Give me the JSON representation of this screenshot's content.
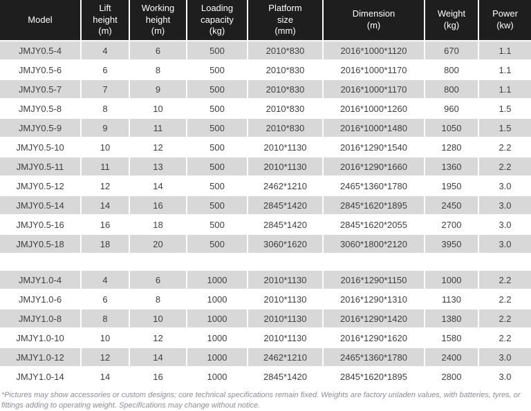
{
  "colors": {
    "header_bg": "#1e1e1e",
    "row_alt": "#d8d8d8",
    "cell_text": "#3e3e3e",
    "footnote_text": "#8d8d95"
  },
  "table": {
    "columns": [
      {
        "label": "Model"
      },
      {
        "label": "Lift\nheight\n(m)"
      },
      {
        "label": "Working\nheight\n(m)"
      },
      {
        "label": "Loading\ncapacity\n(kg)"
      },
      {
        "label": "Platform\nsize\n(mm)"
      },
      {
        "label": "Dimension\n(m)"
      },
      {
        "label": "Weight\n(kg)"
      },
      {
        "label": "Power\n(kw)"
      }
    ],
    "sections": [
      {
        "rows": [
          [
            "JMJY0.5-4",
            "4",
            "6",
            "500",
            "2010*830",
            "2016*1000*1120",
            "670",
            "1.1"
          ],
          [
            "JMJY0.5-6",
            "6",
            "8",
            "500",
            "2010*830",
            "2016*1000*1170",
            "800",
            "1.1"
          ],
          [
            "JMJY0.5-7",
            "7",
            "9",
            "500",
            "2010*830",
            "2016*1000*1170",
            "800",
            "1.1"
          ],
          [
            "JMJY0.5-8",
            "8",
            "10",
            "500",
            "2010*830",
            "2016*1000*1260",
            "960",
            "1.5"
          ],
          [
            "JMJY0.5-9",
            "9",
            "11",
            "500",
            "2010*830",
            "2016*1000*1480",
            "1050",
            "1.5"
          ],
          [
            "JMJY0.5-10",
            "10",
            "12",
            "500",
            "2010*1130",
            "2016*1290*1540",
            "1280",
            "2.2"
          ],
          [
            "JMJY0.5-11",
            "11",
            "13",
            "500",
            "2010*1130",
            "2016*1290*1660",
            "1360",
            "2.2"
          ],
          [
            "JMJY0.5-12",
            "12",
            "14",
            "500",
            "2462*1210",
            "2465*1360*1780",
            "1950",
            "3.0"
          ],
          [
            "JMJY0.5-14",
            "14",
            "16",
            "500",
            "2845*1420",
            "2845*1620*1895",
            "2450",
            "3.0"
          ],
          [
            "JMJY0.5-16",
            "16",
            "18",
            "500",
            "2845*1420",
            "2845*1620*2055",
            "2700",
            "3.0"
          ],
          [
            "JMJY0.5-18",
            "18",
            "20",
            "500",
            "3060*1620",
            "3060*1800*2120",
            "3950",
            "3.0"
          ]
        ]
      },
      {
        "rows": [
          [
            "JMJY1.0-4",
            "4",
            "6",
            "1000",
            "2010*1130",
            "2016*1290*1150",
            "1000",
            "2.2"
          ],
          [
            "JMJY1.0-6",
            "6",
            "8",
            "1000",
            "2010*1130",
            "2016*1290*1310",
            "1130",
            "2.2"
          ],
          [
            "JMJY1.0-8",
            "8",
            "10",
            "1000",
            "2010*1130",
            "2016*1290*1420",
            "1380",
            "2.2"
          ],
          [
            "JMJY1.0-10",
            "10",
            "12",
            "1000",
            "2010*1130",
            "2016*1290*1620",
            "1580",
            "2.2"
          ],
          [
            "JMJY1.0-12",
            "12",
            "14",
            "1000",
            "2462*1210",
            "2465*1360*1780",
            "2400",
            "3.0"
          ],
          [
            "JMJY1.0-14",
            "14",
            "16",
            "1000",
            "2845*1420",
            "2845*1620*1895",
            "2800",
            "3.0"
          ]
        ]
      }
    ]
  },
  "footnote": "*Pictures may show accessories or custom designs; core technical specifications remain fixed. Weights are factory unladen values, with batteries, tyres, or fittings adding to operating weight. Specifications may change without notice."
}
